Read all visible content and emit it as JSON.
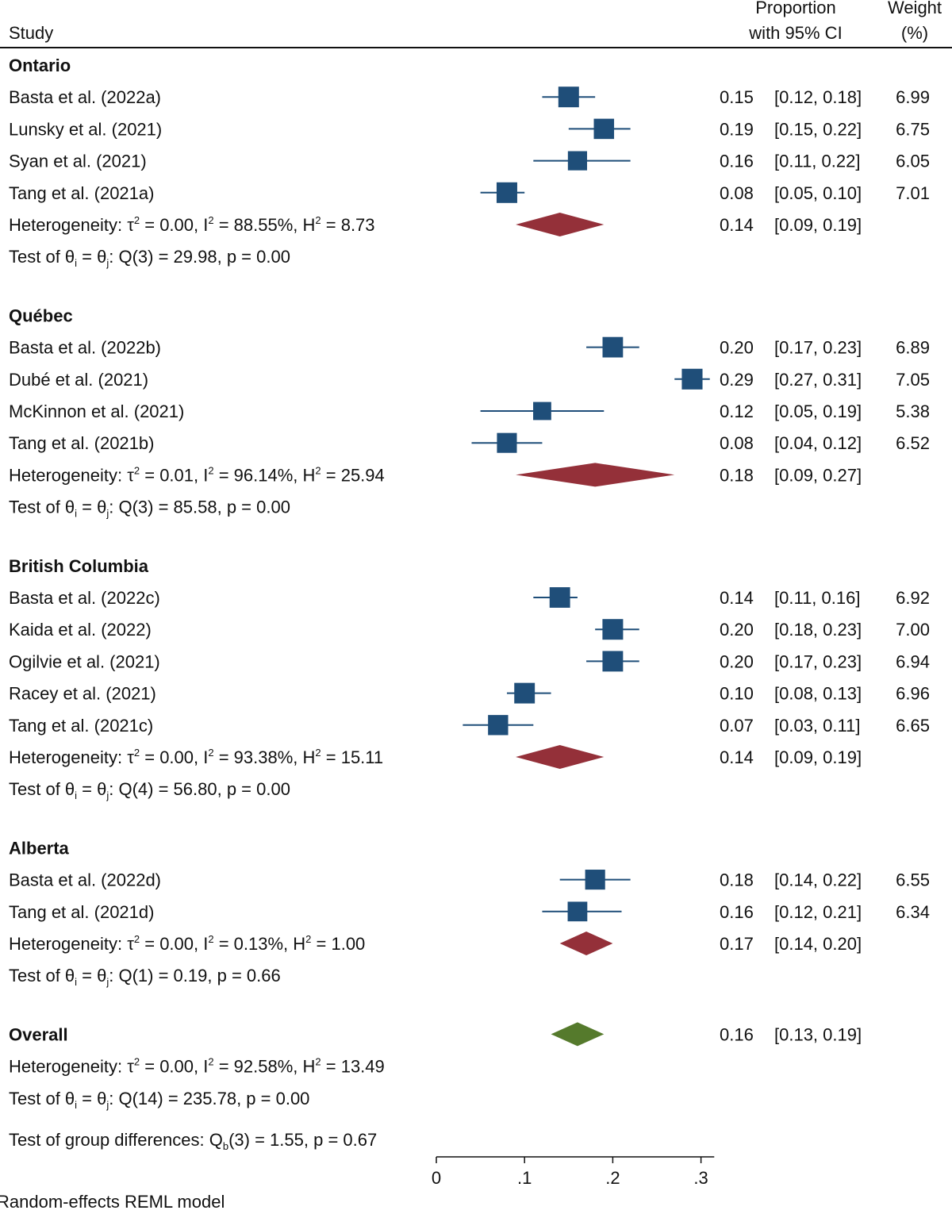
{
  "chart_data": {
    "type": "forest",
    "header": {
      "study": "Study",
      "proportion_line1": "Proportion",
      "proportion_line2": "with 95% CI",
      "weight_line1": "Weight",
      "weight_line2": "(%)"
    },
    "x_ticks": [
      {
        "value": 0,
        "label": "0"
      },
      {
        "value": 0.1,
        "label": ".1"
      },
      {
        "value": 0.2,
        "label": ".2"
      },
      {
        "value": 0.3,
        "label": ".3"
      }
    ],
    "xlim": [
      0,
      0.315
    ],
    "groups": [
      {
        "name": "Ontario",
        "studies": [
          {
            "label": "Basta et al. (2022a)",
            "est": 0.15,
            "lo": 0.12,
            "hi": 0.18,
            "est_text": "0.15",
            "ci_text": "[0.12,  0.18]",
            "weight": "6.99"
          },
          {
            "label": "Lunsky et al. (2021)",
            "est": 0.19,
            "lo": 0.15,
            "hi": 0.22,
            "est_text": "0.19",
            "ci_text": "[0.15,  0.22]",
            "weight": "6.75"
          },
          {
            "label": "Syan et al. (2021)",
            "est": 0.16,
            "lo": 0.11,
            "hi": 0.22,
            "est_text": "0.16",
            "ci_text": "[0.11,  0.22]",
            "weight": "6.05"
          },
          {
            "label": "Tang et al. (2021a)",
            "est": 0.08,
            "lo": 0.05,
            "hi": 0.1,
            "est_text": "0.08",
            "ci_text": "[0.05,  0.10]",
            "weight": "7.01"
          }
        ],
        "subtotal": {
          "est": 0.14,
          "lo": 0.09,
          "hi": 0.19,
          "est_text": "0.14",
          "ci_text": "[0.09,  0.19]"
        },
        "heterogeneity": {
          "prefix": "Heterogeneity: τ",
          "tau2": " = 0.00, I",
          "i2": " = 88.55%, H",
          "h2": " = 8.73"
        },
        "test": {
          "df": "3",
          "q": "29.98",
          "p": "0.00"
        }
      },
      {
        "name": "Québec",
        "studies": [
          {
            "label": "Basta et al. (2022b)",
            "est": 0.2,
            "lo": 0.17,
            "hi": 0.23,
            "est_text": "0.20",
            "ci_text": "[0.17,  0.23]",
            "weight": "6.89"
          },
          {
            "label": "Dubé et al. (2021)",
            "est": 0.29,
            "lo": 0.27,
            "hi": 0.31,
            "est_text": "0.29",
            "ci_text": "[0.27,  0.31]",
            "weight": "7.05"
          },
          {
            "label": "McKinnon et al. (2021)",
            "est": 0.12,
            "lo": 0.05,
            "hi": 0.19,
            "est_text": "0.12",
            "ci_text": "[0.05,  0.19]",
            "weight": "5.38"
          },
          {
            "label": "Tang et al. (2021b)",
            "est": 0.08,
            "lo": 0.04,
            "hi": 0.12,
            "est_text": "0.08",
            "ci_text": "[0.04,  0.12]",
            "weight": "6.52"
          }
        ],
        "subtotal": {
          "est": 0.18,
          "lo": 0.09,
          "hi": 0.27,
          "est_text": "0.18",
          "ci_text": "[0.09,  0.27]"
        },
        "heterogeneity": {
          "prefix": "Heterogeneity: τ",
          "tau2": " = 0.01, I",
          "i2": " = 96.14%, H",
          "h2": " = 25.94"
        },
        "test": {
          "df": "3",
          "q": "85.58",
          "p": "0.00"
        }
      },
      {
        "name": "British Columbia",
        "studies": [
          {
            "label": "Basta et al. (2022c)",
            "est": 0.14,
            "lo": 0.11,
            "hi": 0.16,
            "est_text": "0.14",
            "ci_text": "[0.11,  0.16]",
            "weight": "6.92"
          },
          {
            "label": "Kaida et al. (2022)",
            "est": 0.2,
            "lo": 0.18,
            "hi": 0.23,
            "est_text": "0.20",
            "ci_text": "[0.18,  0.23]",
            "weight": "7.00"
          },
          {
            "label": "Ogilvie et al. (2021)",
            "est": 0.2,
            "lo": 0.17,
            "hi": 0.23,
            "est_text": "0.20",
            "ci_text": "[0.17,  0.23]",
            "weight": "6.94"
          },
          {
            "label": "Racey et al. (2021)",
            "est": 0.1,
            "lo": 0.08,
            "hi": 0.13,
            "est_text": "0.10",
            "ci_text": "[0.08,  0.13]",
            "weight": "6.96"
          },
          {
            "label": "Tang et al. (2021c)",
            "est": 0.07,
            "lo": 0.03,
            "hi": 0.11,
            "est_text": "0.07",
            "ci_text": "[0.03,  0.11]",
            "weight": "6.65"
          }
        ],
        "subtotal": {
          "est": 0.14,
          "lo": 0.09,
          "hi": 0.19,
          "est_text": "0.14",
          "ci_text": "[0.09,  0.19]"
        },
        "heterogeneity": {
          "prefix": "Heterogeneity: τ",
          "tau2": " = 0.00, I",
          "i2": " = 93.38%, H",
          "h2": " = 15.11"
        },
        "test": {
          "df": "4",
          "q": "56.80",
          "p": "0.00"
        }
      },
      {
        "name": "Alberta",
        "studies": [
          {
            "label": "Basta et al. (2022d)",
            "est": 0.18,
            "lo": 0.14,
            "hi": 0.22,
            "est_text": "0.18",
            "ci_text": "[0.14,  0.22]",
            "weight": "6.55"
          },
          {
            "label": "Tang et al. (2021d)",
            "est": 0.16,
            "lo": 0.12,
            "hi": 0.21,
            "est_text": "0.16",
            "ci_text": "[0.12,  0.21]",
            "weight": "6.34"
          }
        ],
        "subtotal": {
          "est": 0.17,
          "lo": 0.14,
          "hi": 0.2,
          "est_text": "0.17",
          "ci_text": "[0.14,  0.20]"
        },
        "heterogeneity": {
          "prefix": "Heterogeneity: τ",
          "tau2": " = 0.00, I",
          "i2": " = 0.13%, H",
          "h2": " = 1.00"
        },
        "test": {
          "df": "1",
          "q": "0.19",
          "p": "0.66"
        }
      }
    ],
    "overall": {
      "label": "Overall",
      "est": 0.16,
      "lo": 0.13,
      "hi": 0.19,
      "est_text": "0.16",
      "ci_text": "[0.13,  0.19]",
      "heterogeneity": {
        "prefix": "Heterogeneity: τ",
        "tau2": " = 0.00, I",
        "i2": " = 92.58%, H",
        "h2": " = 13.49"
      },
      "test": {
        "df": "14",
        "q": "235.78",
        "p": "0.00"
      }
    },
    "group_test": {
      "prefix": "Test of group differences: Q",
      "sub": "b",
      "suffix": "(3) = 1.55, p = 0.67"
    },
    "footnote": "Random-effects REML model"
  },
  "colors": {
    "study_marker": "#1f4e79",
    "subgroup_diamond": "#943039",
    "overall_diamond": "#557a2c",
    "text": "#111111"
  }
}
